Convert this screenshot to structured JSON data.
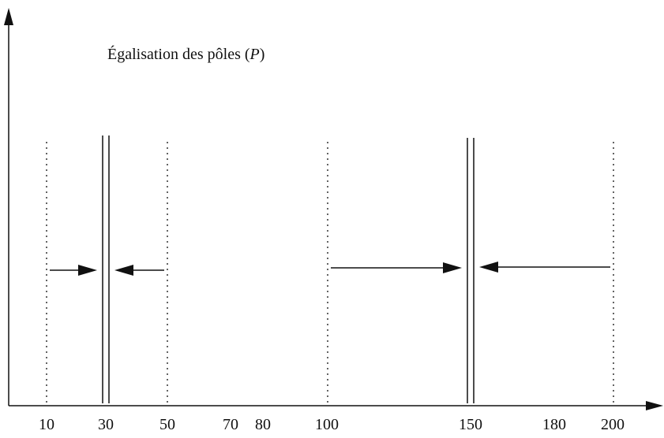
{
  "diagram": {
    "title": {
      "prefix": "Égalisation des pôles (",
      "variable": "P",
      "suffix": ")"
    },
    "x_ticks": [
      "10",
      "30",
      "50",
      "70",
      "80",
      "100",
      "150",
      "180",
      "200"
    ],
    "dotted_boundaries": [
      10,
      50,
      100,
      200
    ],
    "pole_pairs": [
      30,
      150
    ],
    "arrows": [
      {
        "from": 10,
        "to": 30
      },
      {
        "from": 50,
        "to": 30
      },
      {
        "from": 100,
        "to": 150
      },
      {
        "from": 200,
        "to": 150
      }
    ],
    "colors": {
      "ink": "#111111",
      "background": "#ffffff"
    }
  }
}
